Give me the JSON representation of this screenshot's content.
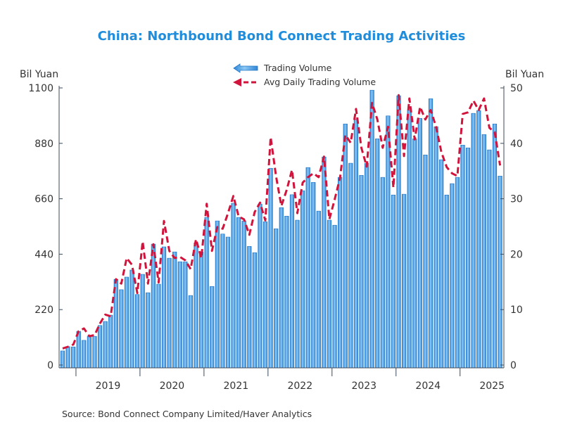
{
  "chart_data": {
    "type": "bar",
    "title": "China: Northbound Bond Connect Trading Activities",
    "left_unit": "Bil Yuan",
    "right_unit": "Bil Yuan",
    "source": "Source:  Bond Connect Company Limited/Haver Analytics",
    "frequency": "monthly",
    "start_month": "2018-10",
    "end_month": "2025-08",
    "x_tick_labels": [
      "2019",
      "2020",
      "2021",
      "2022",
      "2023",
      "2024",
      "2025"
    ],
    "left_axis": {
      "ylim": [
        0,
        1100
      ],
      "ticks": [
        0,
        220,
        440,
        660,
        880,
        1100
      ]
    },
    "right_axis": {
      "ylim": [
        0,
        50
      ],
      "ticks": [
        0,
        10,
        20,
        30,
        40,
        50
      ]
    },
    "grid": false,
    "legend_placement": "top-center",
    "series": [
      {
        "name": "Trading Volume",
        "type": "bar",
        "axis": "left",
        "color": "#3b9be3",
        "values": [
          56,
          73,
          72,
          134,
          98,
          114,
          114,
          157,
          173,
          198,
          340,
          299,
          349,
          377,
          280,
          360,
          287,
          480,
          321,
          469,
          424,
          449,
          410,
          410,
          276,
          485,
          449,
          586,
          312,
          572,
          520,
          508,
          642,
          586,
          572,
          471,
          446,
          639,
          569,
          781,
          541,
          625,
          591,
          676,
          575,
          692,
          784,
          725,
          611,
          826,
          575,
          555,
          745,
          957,
          801,
          976,
          753,
          801,
          1091,
          898,
          745,
          989,
          675,
          1069,
          678,
          1011,
          898,
          979,
          834,
          1057,
          946,
          815,
          675,
          720,
          745,
          873,
          862,
          999,
          1010,
          915,
          854,
          957,
          750
        ]
      },
      {
        "name": "Avg Daily Trading Volume",
        "type": "line",
        "axis": "right",
        "color": "#d0143c",
        "values": [
          3.0,
          3.3,
          3.7,
          6.1,
          6.6,
          5.2,
          5.4,
          7.5,
          9.1,
          8.8,
          15.5,
          14.7,
          19.3,
          18.1,
          13.0,
          22.3,
          14.7,
          21.8,
          14.9,
          26.0,
          20.6,
          19.3,
          19.5,
          18.9,
          17.3,
          22.7,
          19.3,
          29.1,
          20.6,
          24.9,
          24.6,
          27.4,
          30.5,
          26.8,
          26.3,
          23.5,
          27.6,
          29.3,
          26.1,
          41.1,
          34.1,
          28.7,
          31.6,
          35.2,
          27.4,
          32.9,
          33.9,
          34.6,
          33.9,
          37.6,
          26.3,
          29.9,
          33.8,
          41.5,
          40.1,
          46.2,
          39.2,
          35.8,
          47.3,
          44.3,
          39.2,
          43.0,
          32.0,
          48.7,
          37.7,
          48.1,
          40.7,
          46.6,
          44.3,
          46.0,
          43.0,
          38.4,
          35.7,
          34.6,
          34.1,
          45.3,
          45.6,
          47.7,
          46.0,
          48.1,
          42.8,
          42.0,
          36.0
        ]
      }
    ]
  }
}
